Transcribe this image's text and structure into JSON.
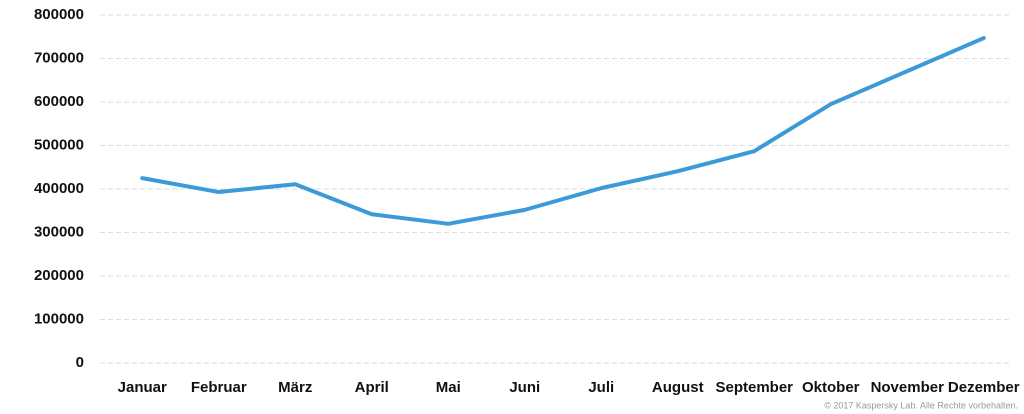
{
  "chart_data": {
    "type": "line",
    "categories": [
      "Januar",
      "Februar",
      "März",
      "April",
      "Mai",
      "Juni",
      "Juli",
      "August",
      "September",
      "Oktober",
      "November",
      "Dezember"
    ],
    "values": [
      425000,
      393000,
      411000,
      342000,
      320000,
      352000,
      402000,
      441000,
      487000,
      595000,
      671000,
      747000
    ],
    "color": "#3d9ad8",
    "ylim": [
      0,
      800000
    ],
    "yticks": [
      0,
      100000,
      200000,
      300000,
      400000,
      500000,
      600000,
      700000,
      800000
    ],
    "grid": true,
    "copyright": "© 2017 Kaspersky Lab. Alle Rechte vorbehalten."
  }
}
